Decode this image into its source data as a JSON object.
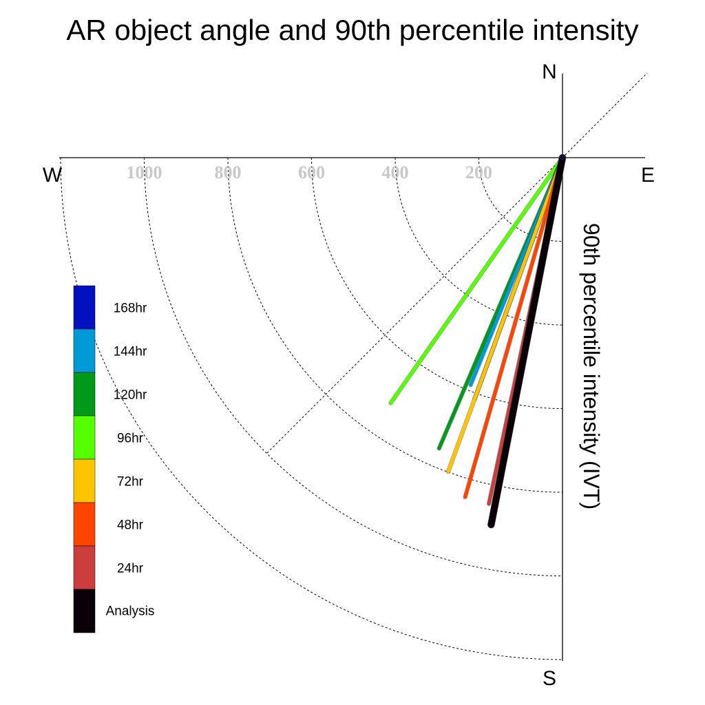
{
  "chart_data": {
    "type": "polar-vector",
    "title": "AR object angle and 90th percentile intensity",
    "ylabel": "90th percentile intensity (IVT)",
    "compass": {
      "north": "N",
      "south": "S",
      "east": "E",
      "west": "W"
    },
    "radial_ticks": [
      {
        "value": 200,
        "label": "200"
      },
      {
        "value": 400,
        "label": "400"
      },
      {
        "value": 600,
        "label": "600"
      },
      {
        "value": 800,
        "label": "800"
      },
      {
        "value": 1000,
        "label": "1000"
      },
      {
        "value": 1200,
        "label": ""
      }
    ],
    "rmax": 1200,
    "grid": true,
    "legend_position": "left",
    "series": [
      {
        "name": "96hr",
        "color": "#55ff00",
        "angle_deg_from_north": 215,
        "intensity": 716
      },
      {
        "name": "120hr",
        "color": "#009a1a",
        "angle_deg_from_north": 203,
        "intensity": 755
      },
      {
        "name": "144hr",
        "color": "#009ad8",
        "angle_deg_from_north": 202,
        "intensity": 586
      },
      {
        "name": "168hr",
        "color": "#0011c0",
        "angle_deg_from_north": 200,
        "intensity": 615
      },
      {
        "name": "72hr",
        "color": "#ffc400",
        "angle_deg_from_north": 200,
        "intensity": 799
      },
      {
        "name": "48hr",
        "color": "#ff4400",
        "angle_deg_from_north": 196,
        "intensity": 844
      },
      {
        "name": "24hr",
        "color": "#cc3d3e",
        "angle_deg_from_north": 192,
        "intensity": 846
      },
      {
        "name": "Analysis",
        "color": "#0a0007",
        "angle_deg_from_north": 191,
        "intensity": 894
      }
    ],
    "legend": [
      {
        "label": "168hr",
        "color": "#0011c0"
      },
      {
        "label": "144hr",
        "color": "#009ad8"
      },
      {
        "label": "120hr",
        "color": "#009a1a"
      },
      {
        "label": "96hr",
        "color": "#55ff00"
      },
      {
        "label": "72hr",
        "color": "#ffc400"
      },
      {
        "label": "48hr",
        "color": "#ff4400"
      },
      {
        "label": "24hr",
        "color": "#cc3d3e"
      },
      {
        "label": "Analysis",
        "color": "#0a0007"
      }
    ]
  }
}
